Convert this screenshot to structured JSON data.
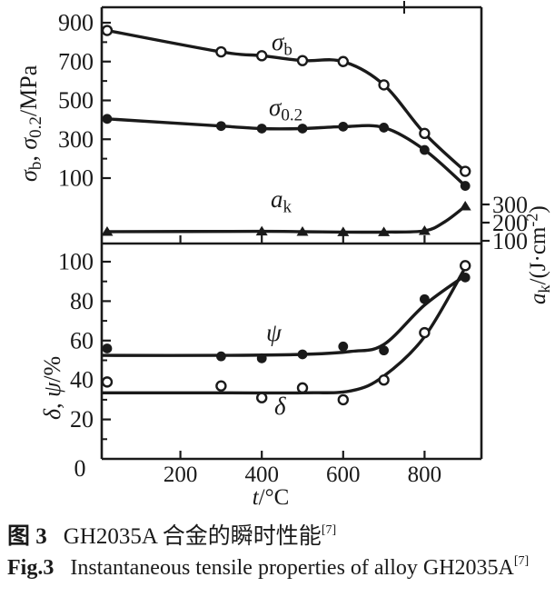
{
  "captions": {
    "zh": {
      "label": "图 3",
      "text": "GH2035A 合金的瞬时性能",
      "ref": "[7]"
    },
    "en": {
      "label": "Fig.3",
      "text": "Instantaneous tensile properties of alloy GH2035A",
      "ref": "[7]"
    }
  },
  "chart_data": [
    {
      "type": "line",
      "panel": "top",
      "legend": "inline-labels",
      "grid": false,
      "x_axis": {
        "label_parts": [
          {
            "text": "t",
            "italic": true
          },
          {
            "text": "/°C"
          }
        ],
        "ticks": [
          0,
          200,
          400,
          600,
          800
        ],
        "range": [
          0,
          938
        ]
      },
      "y_left": {
        "label_parts": [
          {
            "text": "σ",
            "italic": true,
            "sub": "b"
          },
          {
            "text": ", "
          },
          {
            "text": "σ",
            "italic": true,
            "sub": "0.2"
          },
          {
            "text": "/MPa"
          }
        ],
        "tick_labels": [
          900,
          700,
          500,
          300,
          100
        ],
        "minor_ticks": [
          800,
          600,
          400,
          200
        ],
        "range": [
          100,
          900
        ]
      },
      "y_right": {
        "label_parts": [
          {
            "text": "a",
            "italic": true,
            "sub": "k"
          },
          {
            "text": "/(J·cm"
          },
          {
            "text": "-2",
            "sup": true
          },
          {
            "text": ")"
          }
        ],
        "tick_labels": [
          300,
          200,
          100
        ],
        "range": [
          100,
          300
        ]
      },
      "series": [
        {
          "key": "sigma_b",
          "name_parts": [
            {
              "text": "σ",
              "italic": true,
              "sub": "b"
            }
          ],
          "marker": "open-circle",
          "axis": "left",
          "x": [
            20,
            300,
            400,
            500,
            600,
            700,
            800,
            900
          ],
          "y": [
            860,
            750,
            730,
            705,
            700,
            580,
            330,
            135
          ]
        },
        {
          "key": "sigma_02",
          "name_parts": [
            {
              "text": "σ",
              "italic": true,
              "sub": "0.2"
            }
          ],
          "marker": "filled-circle",
          "axis": "left",
          "x": [
            20,
            300,
            400,
            500,
            600,
            700,
            800,
            900
          ],
          "y": [
            405,
            368,
            355,
            355,
            365,
            360,
            245,
            60
          ]
        },
        {
          "key": "a_k",
          "name_parts": [
            {
              "text": "a",
              "italic": true,
              "sub": "k"
            }
          ],
          "marker": "filled-triangle",
          "axis": "right",
          "x": [
            20,
            400,
            500,
            600,
            700,
            800,
            900
          ],
          "y": [
            150,
            152,
            150,
            148,
            148,
            155,
            290
          ],
          "fit_x": [
            20,
            400,
            500,
            600,
            700,
            800,
            850,
            900
          ],
          "fit_y": [
            150,
            152,
            150,
            148,
            148,
            155,
            205,
            290
          ]
        }
      ]
    },
    {
      "type": "scatter",
      "panel": "bottom",
      "legend": "inline-labels",
      "grid": false,
      "y_left": {
        "label_parts": [
          {
            "text": "δ",
            "italic": true
          },
          {
            "text": ", "
          },
          {
            "text": "ψ",
            "italic": true
          },
          {
            "text": "/%"
          }
        ],
        "tick_labels": [
          100,
          80,
          60,
          40,
          20,
          0
        ],
        "minor_ticks": [
          90,
          70,
          50,
          30,
          10
        ],
        "range": [
          0,
          100
        ]
      },
      "series": [
        {
          "key": "psi",
          "name_parts": [
            {
              "text": "ψ",
              "italic": true
            }
          ],
          "marker": "filled-circle",
          "x": [
            20,
            300,
            400,
            500,
            600,
            700,
            800,
            900
          ],
          "y": [
            56,
            52,
            51,
            53,
            57,
            55,
            81,
            92
          ],
          "fit_x": [
            10,
            300,
            500,
            620,
            700,
            800,
            900
          ],
          "fit_y": [
            52.5,
            52.5,
            53,
            54.5,
            58,
            78,
            93
          ]
        },
        {
          "key": "delta",
          "name_parts": [
            {
              "text": "δ",
              "italic": true
            }
          ],
          "marker": "open-circle",
          "x": [
            20,
            300,
            400,
            500,
            600,
            700,
            800,
            900
          ],
          "y": [
            39,
            37,
            31,
            36,
            30,
            40,
            64,
            98
          ],
          "fit_x": [
            10,
            300,
            500,
            620,
            700,
            800,
            900
          ],
          "fit_y": [
            33.5,
            33.5,
            33.5,
            34.5,
            42,
            62,
            97
          ]
        }
      ]
    }
  ]
}
